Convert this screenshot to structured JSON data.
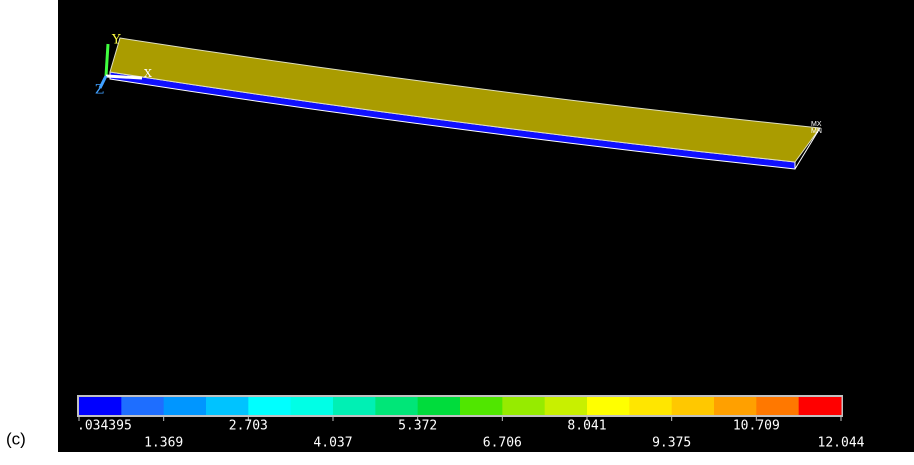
{
  "figure_label": "(c)",
  "triad": {
    "x": "X",
    "y": "Y",
    "z": "Z"
  },
  "markers": {
    "max": "MX",
    "min": "MN"
  },
  "legend": {
    "colors": [
      "#0000ff",
      "#1e6eff",
      "#0096ff",
      "#00c3ff",
      "#00ffff",
      "#00ffe6",
      "#00f0b4",
      "#00e678",
      "#00dc3c",
      "#50e600",
      "#96eb00",
      "#c8f000",
      "#ffff00",
      "#ffe600",
      "#ffc800",
      "#ffa000",
      "#ff7800",
      "#ff0000"
    ],
    "labels": [
      ".034395",
      "1.369",
      "2.703",
      "4.037",
      "5.372",
      "6.706",
      "8.041",
      "9.375",
      "10.709",
      "12.044"
    ]
  }
}
